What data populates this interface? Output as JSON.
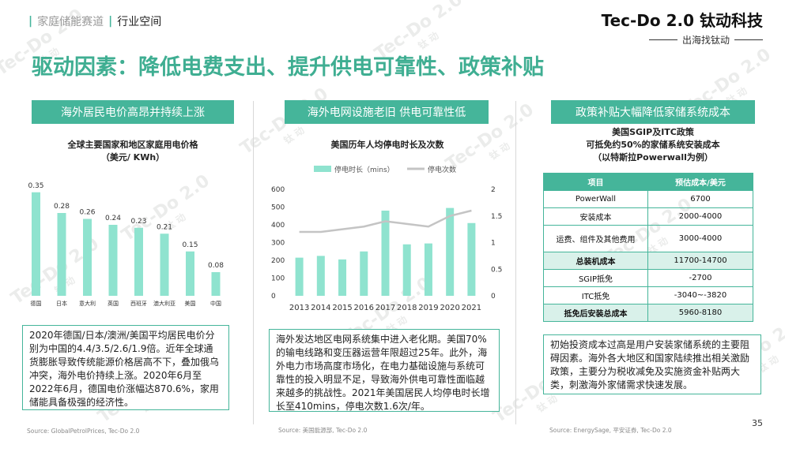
{
  "header": {
    "breadcrumb_section": "家庭储能赛道",
    "breadcrumb_current": "行业空间",
    "logo_main": "Tec-Do 2.0 钛动科技",
    "logo_sub": "出海找钛动"
  },
  "slide_title": "驱动因素：降低电费支出、提升供电可靠性、政策补贴",
  "watermark": "Tec-Do 2.0",
  "watermark_sub": "钛 动",
  "panel1": {
    "pill": "海外居民电价高昂并持续上涨",
    "chart_title_1": "全球主要国家和地区家庭用电价格",
    "chart_title_2": "（美元/ KWh）",
    "text": "2020年德国/日本/澳洲/美国平均居民电价分别为中国的4.4/3.5/2.6/1.9倍。近年全球通货膨胀导致传统能源价格居高不下，叠加俄乌冲突，海外电价持续上涨。2020年6月至2022年6月，德国电价涨幅达870.6%，家用储能具备极强的经济性。",
    "source": "Source: GlobalPetrolPrices, Tec-Do 2.0"
  },
  "panel2": {
    "pill": "海外电网设施老旧 供电可靠性低",
    "chart_title": "美国历年人均停电时长及次数",
    "legend_bar": "停电时长（mins）",
    "legend_line": "停电次数",
    "text": "海外发达地区电网系统集中进入老化期。美国70%的输电线路和变压器运营年限超过25年。此外，海外电力市场高度市场化，在电力基础设施与系统可靠性的投入明显不足，导致海外供电可靠性面临越来越多的挑战性。2021年美国居民人均停电时长增长至410mins，停电次数1.6次/年。",
    "source": "Source: 美国能源部, Tec-Do 2.0"
  },
  "panel3": {
    "pill": "政策补贴大幅降低家储系统成本",
    "chart_title_1": "美国SGIP及ITC政策",
    "chart_title_2": "可抵免约50%的家储系统安装成本",
    "chart_title_3": "（以特斯拉Powerwall为例）",
    "table_header": [
      "项目",
      "预估成本/美元"
    ],
    "table_rows": [
      [
        "PowerWall",
        "6700"
      ],
      [
        "安装成本",
        "2000-4000"
      ],
      [
        "运费、组件及其他费用",
        "3000-4000"
      ],
      [
        "总装机成本",
        "11700-14700"
      ],
      [
        "SGIP抵免",
        "-2700"
      ],
      [
        "ITC抵免",
        "-3040~-3820"
      ],
      [
        "抵免后安装总成本",
        "5960-8180"
      ]
    ],
    "text": "初始投资成本过高是用户安装家储系统的主要阻碍因素。海外各大地区和国家陆续推出相关激励政策，主要分为税收减免及实施资金补贴两大类，刺激海外家储需求快速发展。",
    "source": "Source: EnergySage, 平安证券, Tec-Do 2.0"
  },
  "page_number": "35",
  "colors": {
    "accent": "#45b59a",
    "bar": "#8fe3cf",
    "line": "#c4c4c4",
    "title": "#3fae92"
  },
  "chart_data": [
    {
      "type": "bar",
      "title": "全球主要国家和地区家庭用电价格（美元/ KWh）",
      "categories": [
        "德国",
        "日本",
        "意大利",
        "英国",
        "西班牙",
        "澳大利亚",
        "美国",
        "中国"
      ],
      "values": [
        0.35,
        0.28,
        0.26,
        0.24,
        0.23,
        0.21,
        0.15,
        0.08
      ],
      "value_labels": [
        "0.35",
        "0.28",
        "0.26",
        "0.24",
        "0.23",
        "0.21",
        "0.15",
        "0.08"
      ],
      "ylim": [
        0,
        0.4
      ]
    },
    {
      "type": "bar",
      "title": "美国历年人均停电时长及次数",
      "categories": [
        "2013",
        "2014",
        "2015",
        "2016",
        "2017",
        "2018",
        "2019",
        "2020",
        "2021"
      ],
      "series": [
        {
          "name": "停电时长（mins）",
          "type": "bar",
          "axis": "left",
          "values": [
            215,
            225,
            205,
            250,
            480,
            290,
            295,
            495,
            410
          ]
        },
        {
          "name": "停电次数",
          "type": "line",
          "axis": "right",
          "values": [
            1.2,
            1.2,
            1.25,
            1.3,
            1.4,
            1.35,
            1.3,
            1.5,
            1.6
          ]
        }
      ],
      "ylim_left": [
        0,
        600
      ],
      "ylim_right": [
        0,
        2
      ],
      "yticks_left": [
        "0",
        "100",
        "200",
        "300",
        "400",
        "500",
        "600"
      ],
      "yticks_right": [
        "0",
        "0.5",
        "1",
        "1.5",
        "2"
      ]
    }
  ]
}
